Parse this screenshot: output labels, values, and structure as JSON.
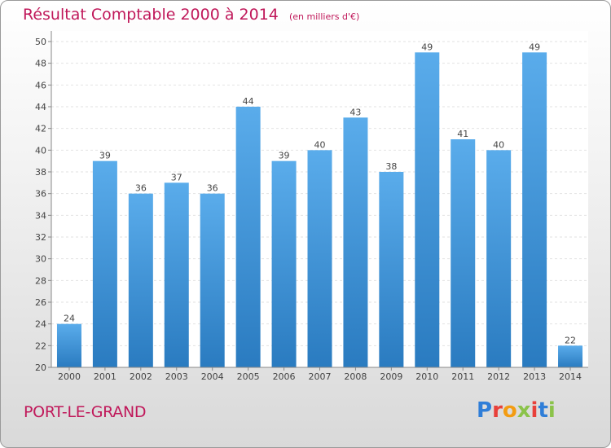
{
  "chart_data": {
    "type": "bar",
    "title": "Résultat Comptable 2000 à 2014",
    "subtitle": "(en milliers d'€)",
    "categories": [
      "2000",
      "2001",
      "2002",
      "2003",
      "2004",
      "2005",
      "2006",
      "2007",
      "2008",
      "2009",
      "2010",
      "2011",
      "2012",
      "2013",
      "2014"
    ],
    "values": [
      24,
      39,
      36,
      37,
      36,
      44,
      39,
      40,
      43,
      38,
      49,
      41,
      40,
      49,
      22
    ],
    "ylim": [
      20,
      50
    ],
    "yticks": [
      20,
      22,
      24,
      26,
      28,
      30,
      32,
      34,
      36,
      38,
      40,
      42,
      44,
      46,
      48,
      50
    ],
    "grid": true,
    "bar_color_top": "#5aaceb",
    "bar_color_bottom": "#2a7bc0"
  },
  "footer": {
    "location": "PORT-LE-GRAND",
    "logo_letters": [
      "P",
      "r",
      "o",
      "x",
      "i",
      "t",
      "i"
    ],
    "logo_colors": [
      "#2f7ed8",
      "#e8403a",
      "#f39c12",
      "#8bc34a",
      "#e8403a",
      "#2f7ed8",
      "#8bc34a"
    ]
  }
}
